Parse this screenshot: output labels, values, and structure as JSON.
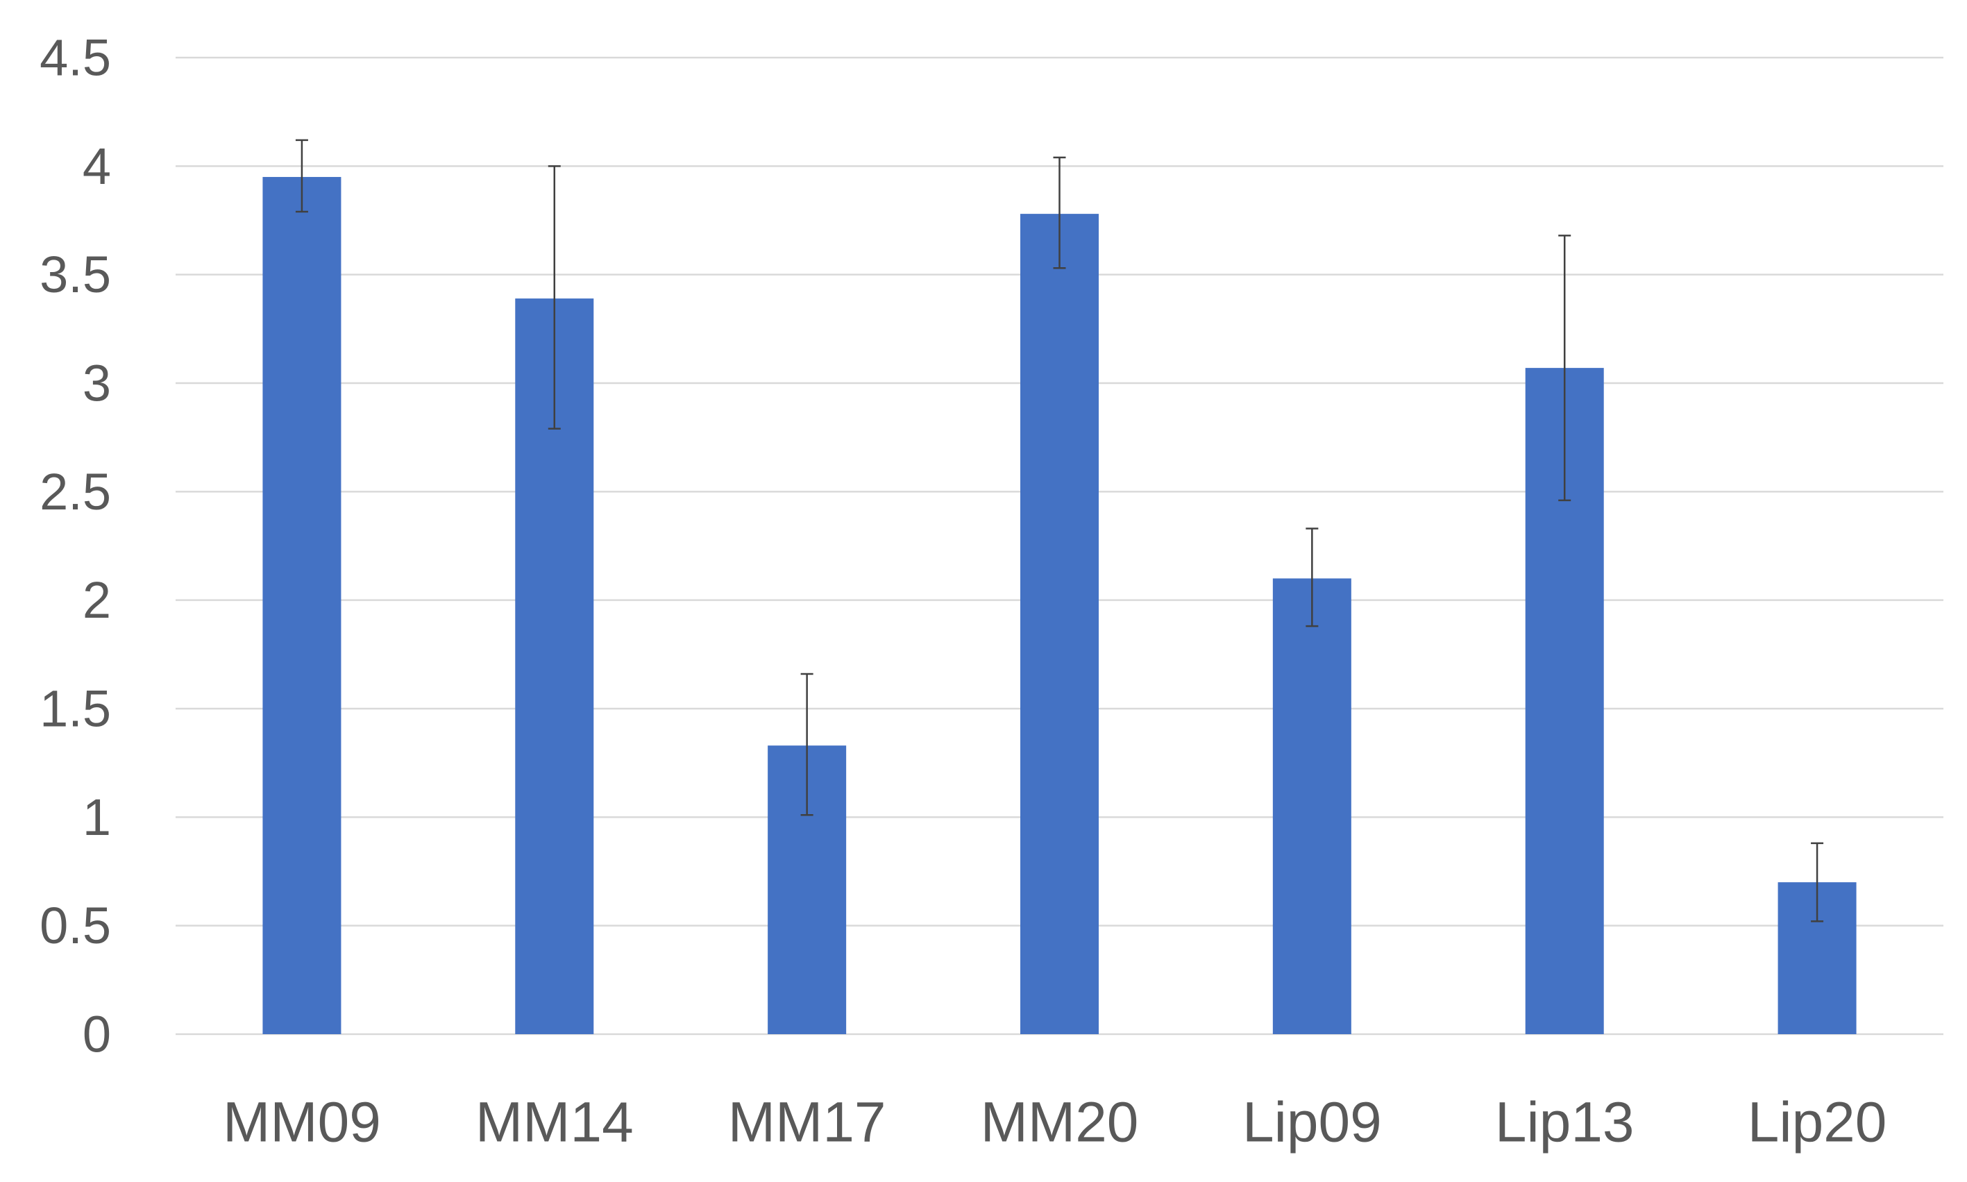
{
  "chart_data": {
    "type": "bar",
    "categories": [
      "MM09",
      "MM14",
      "MM17",
      "MM20",
      "Lip09",
      "Lip13",
      "Lip20"
    ],
    "values": [
      3.95,
      3.39,
      1.33,
      3.78,
      2.1,
      3.07,
      0.7
    ],
    "error_bars": {
      "upper": [
        4.12,
        4.0,
        1.66,
        4.04,
        2.33,
        3.68,
        0.88
      ],
      "lower": [
        3.79,
        2.79,
        1.01,
        3.53,
        1.88,
        2.46,
        0.52
      ]
    },
    "yticks": [
      "0",
      "0.5",
      "1",
      "1.5",
      "2",
      "2.5",
      "3",
      "3.5",
      "4",
      "4.5"
    ],
    "ylim": [
      0,
      4.5
    ],
    "grid": true,
    "legend": "none",
    "title": "",
    "xlabel": "",
    "ylabel": "",
    "colors": {
      "bar": "#4472C4",
      "gridline": "#D9D9D9",
      "error_bar": "#404040",
      "tick_text": "#595959"
    }
  }
}
